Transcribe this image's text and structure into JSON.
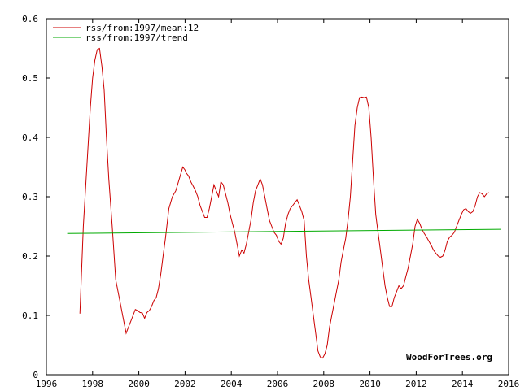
{
  "chart_data": {
    "type": "line",
    "title": "",
    "xlabel": "",
    "ylabel": "",
    "xlim": [
      1996,
      2016
    ],
    "ylim": [
      0,
      0.6
    ],
    "x_ticks": [
      1996,
      1998,
      2000,
      2002,
      2004,
      2006,
      2008,
      2010,
      2012,
      2014,
      2016
    ],
    "x_tick_labels": [
      "1996",
      "1998",
      "2000",
      "2002",
      "2004",
      "2006",
      "2008",
      "2010",
      "2012",
      "2014",
      "2016"
    ],
    "y_ticks": [
      0,
      0.1,
      0.2,
      0.3,
      0.4,
      0.5,
      0.6
    ],
    "y_tick_labels": [
      "0",
      "0.1",
      "0.2",
      "0.3",
      "0.4",
      "0.5",
      "0.6"
    ],
    "grid": false,
    "legend_position": "top-left",
    "watermark": "WoodForTrees.org",
    "series": [
      {
        "name": "rss/from:1997/mean:12",
        "color": "#cc0000",
        "x": [
          1997.45,
          1997.6,
          1997.75,
          1997.9,
          1998.0,
          1998.1,
          1998.2,
          1998.3,
          1998.4,
          1998.5,
          1998.6,
          1998.7,
          1998.85,
          1999.0,
          1999.15,
          1999.3,
          1999.45,
          1999.55,
          1999.65,
          1999.75,
          1999.85,
          1999.95,
          2000.05,
          2000.15,
          2000.25,
          2000.35,
          2000.45,
          2000.55,
          2000.65,
          2000.75,
          2000.85,
          2000.95,
          2001.05,
          2001.15,
          2001.3,
          2001.45,
          2001.6,
          2001.75,
          2001.9,
          2002.0,
          2002.05,
          2002.15,
          2002.25,
          2002.35,
          2002.45,
          2002.55,
          2002.65,
          2002.75,
          2002.85,
          2002.95,
          2003.05,
          2003.15,
          2003.25,
          2003.35,
          2003.45,
          2003.55,
          2003.65,
          2003.75,
          2003.85,
          2003.95,
          2004.05,
          2004.15,
          2004.25,
          2004.35,
          2004.45,
          2004.55,
          2004.65,
          2004.75,
          2004.85,
          2004.95,
          2005.05,
          2005.15,
          2005.25,
          2005.35,
          2005.45,
          2005.55,
          2005.65,
          2005.75,
          2005.85,
          2005.95,
          2006.05,
          2006.15,
          2006.25,
          2006.35,
          2006.45,
          2006.55,
          2006.65,
          2006.75,
          2006.85,
          2006.95,
          2007.05,
          2007.15,
          2007.25,
          2007.35,
          2007.45,
          2007.55,
          2007.65,
          2007.75,
          2007.85,
          2007.95,
          2008.05,
          2008.15,
          2008.25,
          2008.35,
          2008.45,
          2008.55,
          2008.65,
          2008.75,
          2008.85,
          2008.95,
          2009.05,
          2009.15,
          2009.25,
          2009.35,
          2009.45,
          2009.55,
          2009.65,
          2009.75,
          2009.85,
          2009.95,
          2010.05,
          2010.15,
          2010.25,
          2010.35,
          2010.45,
          2010.55,
          2010.65,
          2010.75,
          2010.85,
          2010.95,
          2011.05,
          2011.15,
          2011.25,
          2011.35,
          2011.45,
          2011.55,
          2011.65,
          2011.75,
          2011.85,
          2011.95,
          2012.05,
          2012.15,
          2012.25,
          2012.35,
          2012.45,
          2012.55,
          2012.65,
          2012.75,
          2012.85,
          2012.95,
          2013.05,
          2013.15,
          2013.25,
          2013.35,
          2013.45,
          2013.55,
          2013.65,
          2013.75,
          2013.85,
          2013.95,
          2014.05,
          2014.15,
          2014.25,
          2014.35,
          2014.45,
          2014.55,
          2014.65,
          2014.75,
          2014.85,
          2014.95,
          2015.05,
          2015.15
        ],
        "y": [
          0.103,
          0.25,
          0.35,
          0.45,
          0.5,
          0.53,
          0.548,
          0.55,
          0.52,
          0.48,
          0.4,
          0.33,
          0.25,
          0.16,
          0.13,
          0.1,
          0.07,
          0.08,
          0.09,
          0.1,
          0.11,
          0.108,
          0.105,
          0.104,
          0.095,
          0.105,
          0.108,
          0.115,
          0.125,
          0.13,
          0.145,
          0.17,
          0.2,
          0.23,
          0.28,
          0.3,
          0.31,
          0.33,
          0.35,
          0.345,
          0.34,
          0.335,
          0.325,
          0.318,
          0.31,
          0.3,
          0.285,
          0.275,
          0.265,
          0.265,
          0.28,
          0.3,
          0.32,
          0.31,
          0.3,
          0.325,
          0.32,
          0.305,
          0.29,
          0.27,
          0.255,
          0.24,
          0.22,
          0.2,
          0.21,
          0.205,
          0.22,
          0.24,
          0.26,
          0.29,
          0.31,
          0.32,
          0.33,
          0.32,
          0.3,
          0.28,
          0.26,
          0.25,
          0.24,
          0.235,
          0.225,
          0.22,
          0.23,
          0.255,
          0.27,
          0.28,
          0.285,
          0.29,
          0.295,
          0.285,
          0.275,
          0.26,
          0.2,
          0.16,
          0.13,
          0.1,
          0.07,
          0.04,
          0.03,
          0.028,
          0.035,
          0.05,
          0.08,
          0.1,
          0.12,
          0.14,
          0.16,
          0.19,
          0.21,
          0.23,
          0.26,
          0.3,
          0.36,
          0.42,
          0.45,
          0.467,
          0.468,
          0.467,
          0.468,
          0.45,
          0.4,
          0.33,
          0.27,
          0.24,
          0.21,
          0.18,
          0.15,
          0.13,
          0.115,
          0.115,
          0.13,
          0.14,
          0.15,
          0.145,
          0.15,
          0.165,
          0.18,
          0.2,
          0.22,
          0.25,
          0.262,
          0.255,
          0.245,
          0.238,
          0.232,
          0.225,
          0.218,
          0.21,
          0.205,
          0.2,
          0.198,
          0.2,
          0.21,
          0.225,
          0.232,
          0.235,
          0.24,
          0.25,
          0.26,
          0.27,
          0.278,
          0.28,
          0.275,
          0.272,
          0.275,
          0.285,
          0.3,
          0.307,
          0.305,
          0.3,
          0.305,
          0.307
        ]
      },
      {
        "name": "rss/from:1997/trend",
        "color": "#00aa00",
        "x": [
          1996.9,
          2015.65
        ],
        "y": [
          0.238,
          0.245
        ]
      }
    ]
  }
}
